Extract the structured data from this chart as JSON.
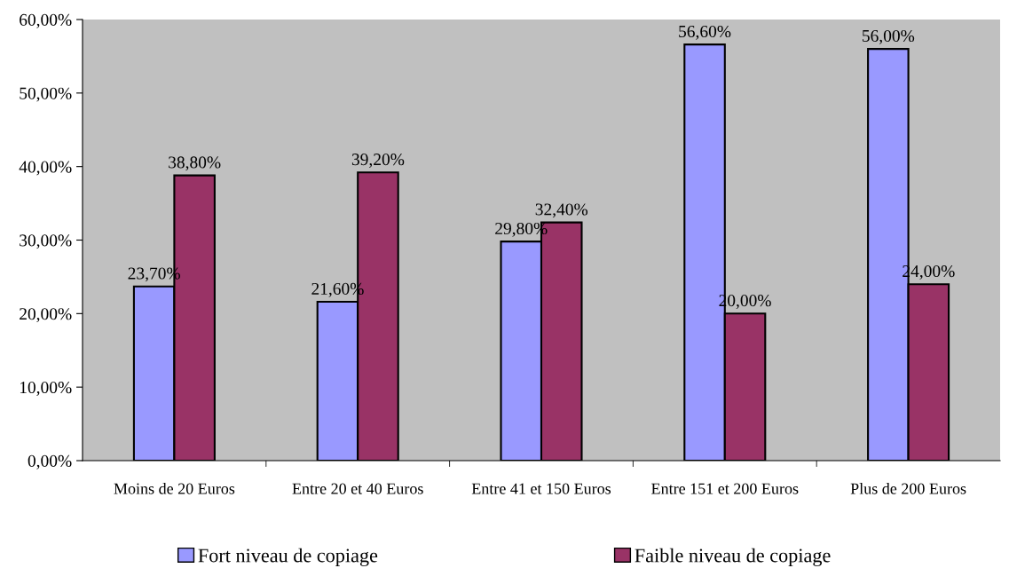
{
  "chart_data": {
    "type": "bar",
    "categories": [
      "Moins de 20 Euros",
      "Entre 20 et 40 Euros",
      "Entre 41 et 150 Euros",
      "Entre 151 et 200 Euros",
      "Plus de 200 Euros"
    ],
    "series": [
      {
        "name": "Fort niveau de copiage",
        "color": "#9999ff",
        "values": [
          23.7,
          21.6,
          29.8,
          56.6,
          56.0
        ],
        "value_labels": [
          "23,70%",
          "21,60%",
          "29,80%",
          "56,60%",
          "56,00%"
        ]
      },
      {
        "name": "Faible niveau de copiage",
        "color": "#993366",
        "values": [
          38.8,
          39.2,
          32.4,
          20.0,
          24.0
        ],
        "value_labels": [
          "38,80%",
          "39,20%",
          "32,40%",
          "20,00%",
          "24,00%"
        ]
      }
    ],
    "ylim": [
      0,
      60
    ],
    "yticks": [
      {
        "value": 0,
        "label": "0,00%"
      },
      {
        "value": 10,
        "label": "10,00%"
      },
      {
        "value": 20,
        "label": "20,00%"
      },
      {
        "value": 30,
        "label": "30,00%"
      },
      {
        "value": 40,
        "label": "40,00%"
      },
      {
        "value": 50,
        "label": "50,00%"
      },
      {
        "value": 60,
        "label": "60,00%"
      }
    ],
    "grid": false,
    "legend": "bottom"
  }
}
